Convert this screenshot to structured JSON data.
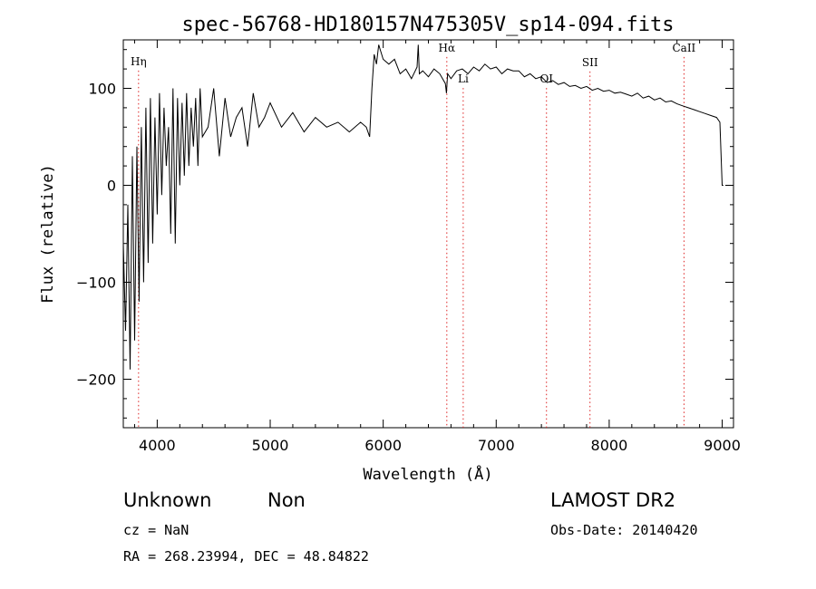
{
  "chart_data": {
    "type": "line",
    "title": "spec-56768-HD180157N475305V_sp14-094.fits",
    "xlabel": "Wavelength (Å)",
    "ylabel": "Flux (relative)",
    "xlim": [
      3700,
      9100
    ],
    "ylim": [
      -250,
      150
    ],
    "xticks": [
      4000,
      5000,
      6000,
      7000,
      8000,
      9000
    ],
    "yticks": [
      -200,
      -100,
      0,
      100
    ],
    "grid": false,
    "series": [
      {
        "x": [
          3700,
          3720,
          3740,
          3760,
          3780,
          3800,
          3820,
          3840,
          3860,
          3880,
          3900,
          3920,
          3940,
          3960,
          3980,
          4000,
          4020,
          4040,
          4060,
          4080,
          4100,
          4120,
          4140,
          4160,
          4180,
          4200,
          4220,
          4240,
          4260,
          4280,
          4300,
          4320,
          4340,
          4360,
          4380,
          4400,
          4450,
          4500,
          4550,
          4600,
          4650,
          4700,
          4750,
          4800,
          4850,
          4900,
          4950,
          5000,
          5100,
          5200,
          5300,
          5400,
          5500,
          5600,
          5700,
          5800,
          5850,
          5880,
          5900,
          5920,
          5940,
          5960,
          6000,
          6050,
          6100,
          6150,
          6200,
          6250,
          6300,
          6310,
          6320,
          6350,
          6400,
          6450,
          6500,
          6550,
          6560,
          6570,
          6600,
          6650,
          6700,
          6750,
          6800,
          6850,
          6900,
          6950,
          7000,
          7050,
          7100,
          7150,
          7200,
          7250,
          7300,
          7350,
          7400,
          7450,
          7500,
          7550,
          7600,
          7650,
          7700,
          7750,
          7800,
          7850,
          7900,
          7950,
          8000,
          8050,
          8100,
          8150,
          8200,
          8250,
          8300,
          8350,
          8400,
          8450,
          8500,
          8550,
          8600,
          8650,
          8700,
          8750,
          8800,
          8850,
          8900,
          8950,
          8980,
          9000,
          9010
        ],
        "y": [
          -60,
          -150,
          -20,
          -190,
          30,
          -160,
          40,
          -120,
          60,
          -100,
          80,
          -80,
          90,
          -60,
          70,
          -30,
          95,
          -10,
          80,
          20,
          60,
          -50,
          100,
          -60,
          90,
          0,
          85,
          10,
          95,
          20,
          80,
          40,
          90,
          20,
          100,
          50,
          60,
          100,
          30,
          90,
          50,
          70,
          80,
          40,
          95,
          60,
          70,
          85,
          60,
          75,
          55,
          70,
          60,
          65,
          55,
          65,
          60,
          50,
          100,
          135,
          125,
          145,
          130,
          125,
          130,
          115,
          120,
          110,
          122,
          145,
          115,
          118,
          112,
          120,
          115,
          105,
          95,
          115,
          110,
          118,
          120,
          115,
          122,
          118,
          125,
          120,
          122,
          115,
          120,
          118,
          118,
          112,
          115,
          110,
          112,
          106,
          108,
          104,
          106,
          102,
          103,
          100,
          102,
          98,
          100,
          97,
          98,
          95,
          96,
          94,
          92,
          95,
          90,
          92,
          88,
          90,
          86,
          87,
          84,
          82,
          80,
          78,
          76,
          74,
          72,
          70,
          65,
          0,
          0
        ]
      }
    ],
    "lines": [
      {
        "label": "Hη",
        "x": 3835,
        "label_y": 124
      },
      {
        "label": "Hα",
        "x": 6563,
        "label_y": 138
      },
      {
        "label": "Li",
        "x": 6708,
        "label_y": 106
      },
      {
        "label": "OI",
        "x": 7445,
        "label_y": 106
      },
      {
        "label": "SII",
        "x": 7830,
        "label_y": 123
      },
      {
        "label": "CaII",
        "x": 8662,
        "label_y": 138
      }
    ]
  },
  "info": {
    "class": "Unknown",
    "subclass": "Non",
    "survey": "LAMOST DR2",
    "cz": "cz = NaN",
    "obs_date": "Obs-Date: 20140420",
    "radec": "RA = 268.23994, DEC =  48.84822"
  }
}
